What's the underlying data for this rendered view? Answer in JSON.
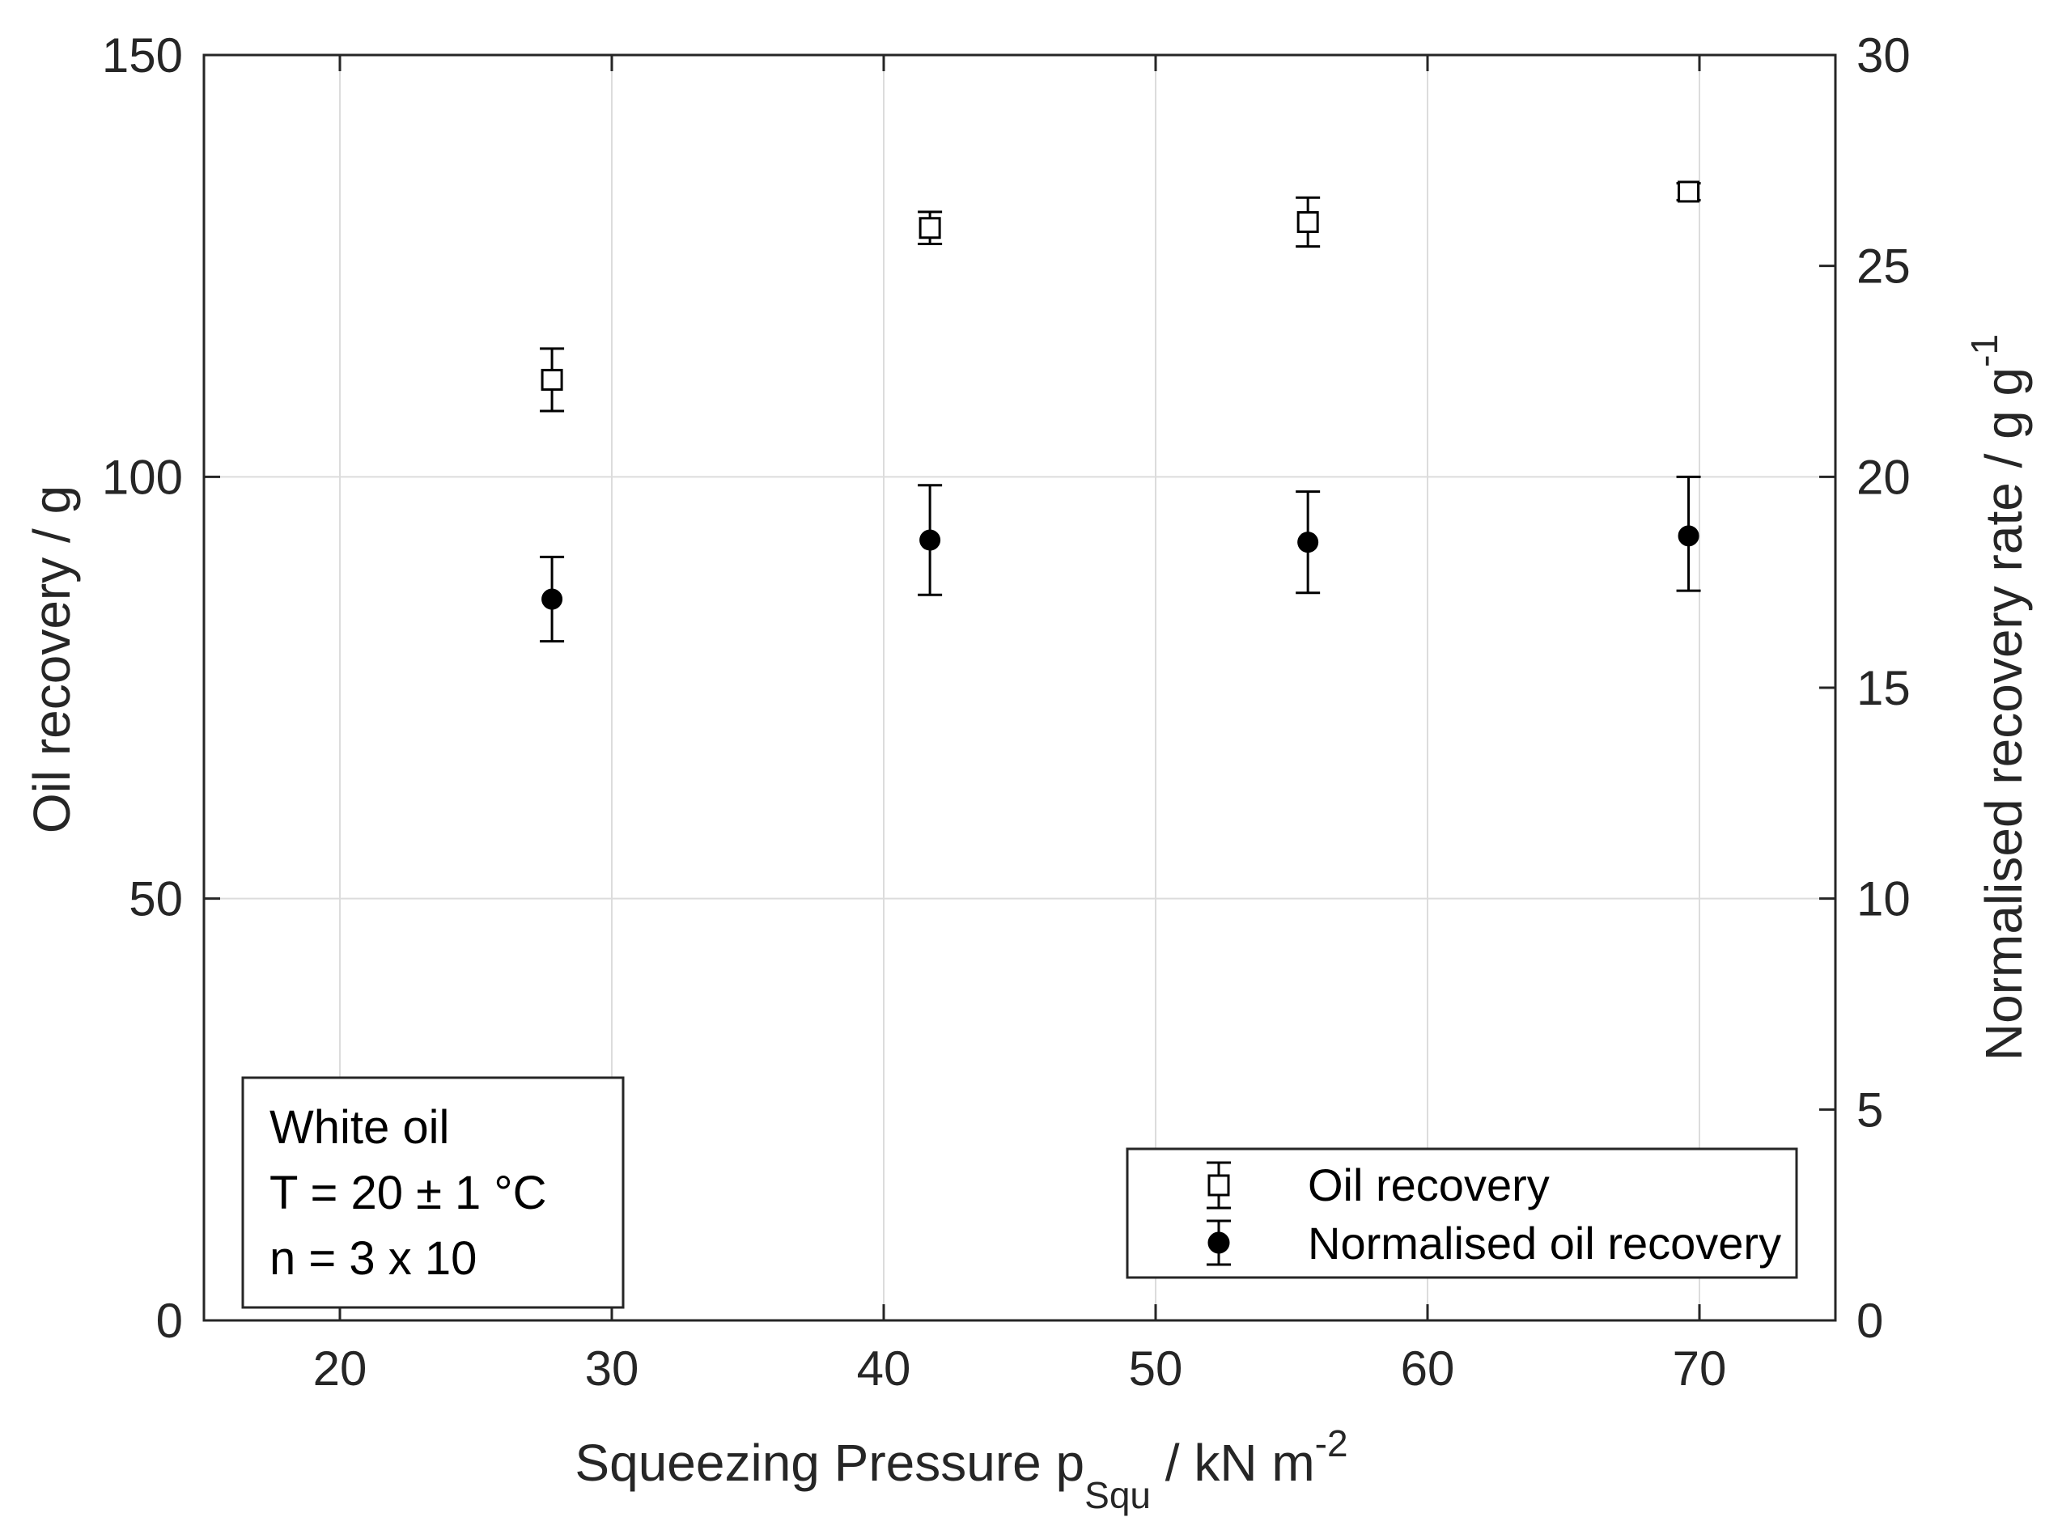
{
  "chart_data": {
    "type": "scatter",
    "xlabel": {
      "main": "Squeezing Pressure p",
      "sub": "Squ",
      "rest": " / kN m",
      "sup": "-2"
    },
    "ylabel_left": "Oil recovery / g",
    "ylabel_right": {
      "main": "Normalised recovery rate / g g",
      "sup": "-1"
    },
    "xlim": [
      15,
      75
    ],
    "ylim_left": [
      0,
      150
    ],
    "ylim_right": [
      0,
      30
    ],
    "x_ticks": [
      20,
      30,
      40,
      50,
      60,
      70
    ],
    "y_ticks_left": [
      0,
      50,
      100,
      150
    ],
    "y_ticks_right": [
      0,
      5,
      10,
      15,
      20,
      25,
      30
    ],
    "grid": true,
    "series": [
      {
        "name": "Oil recovery",
        "axis": "left",
        "marker": "open-square",
        "x": [
          27.8,
          41.7,
          55.6,
          69.6
        ],
        "y": [
          111.5,
          129.5,
          130.2,
          133.8
        ],
        "err_low": [
          3.7,
          1.9,
          2.9,
          1.0
        ],
        "err_high": [
          3.7,
          1.9,
          2.9,
          1.0
        ]
      },
      {
        "name": "Normalised oil recovery",
        "axis": "right",
        "marker": "filled-circle",
        "x": [
          27.8,
          41.7,
          55.6,
          69.6
        ],
        "y": [
          17.1,
          18.5,
          18.45,
          18.6
        ],
        "err_low": [
          1.0,
          1.3,
          1.2,
          1.3
        ],
        "err_high": [
          1.0,
          1.3,
          1.2,
          1.4
        ]
      }
    ],
    "legend_position": "bottom-right",
    "annotation_lines": [
      "White oil",
      "T = 20 ± 1 °C",
      "n = 3 x 10"
    ]
  }
}
